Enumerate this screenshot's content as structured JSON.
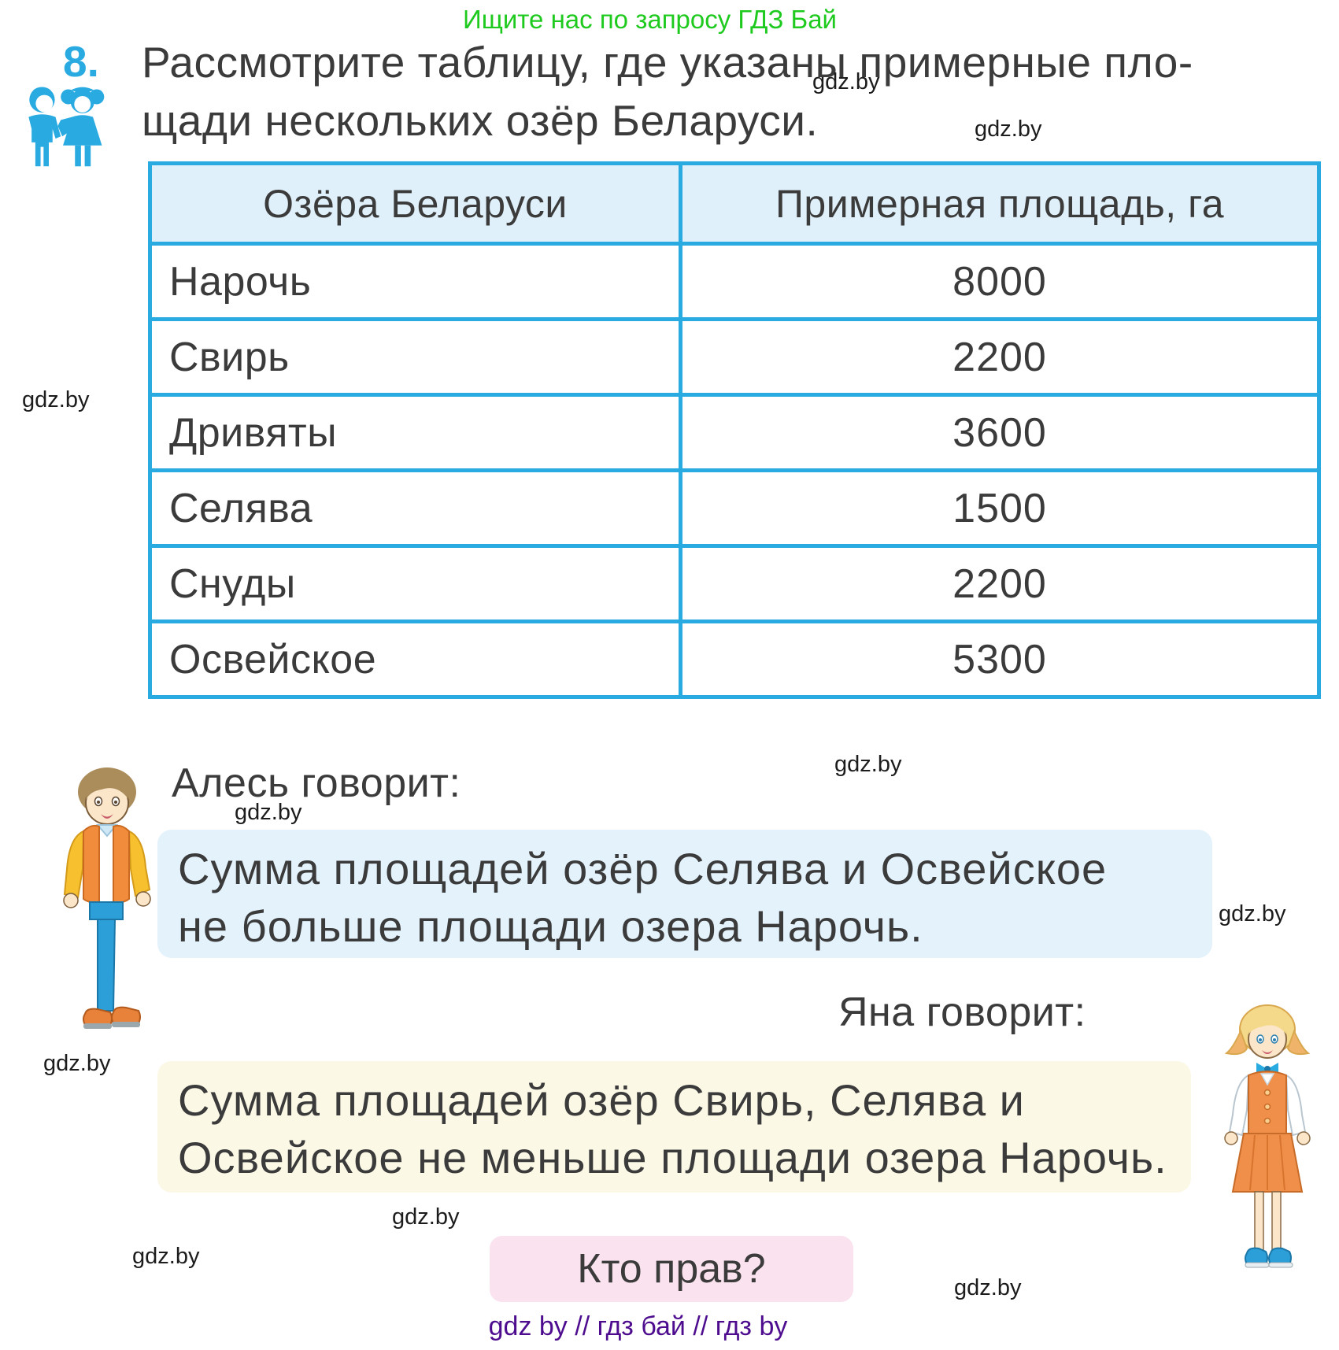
{
  "page": {
    "promo_banner": "Ищите нас по запросу ГДЗ Бай",
    "watermark": "gdz.by",
    "footer": "gdz by  //  гдз бай  //  гдз by"
  },
  "task": {
    "number": "8.",
    "text_line1": "Рассмотрите таблицу, где указаны примерные пло-",
    "text_line2": "щади нескольких озёр Беларуси."
  },
  "table": {
    "headers": [
      "Озёра Беларуси",
      "Примерная площадь, га"
    ],
    "rows": [
      [
        "Нарочь",
        "8000"
      ],
      [
        "Свирь",
        "2200"
      ],
      [
        "Дривяты",
        "3600"
      ],
      [
        "Селява",
        "1500"
      ],
      [
        "Снуды",
        "2200"
      ],
      [
        "Освейское",
        "5300"
      ]
    ]
  },
  "ales": {
    "label": "Алесь говорит:",
    "line1": "Сумма площадей озёр Селява и Освейское",
    "line2": "не больше площади озера Нарочь."
  },
  "yana": {
    "label": "Яна говорит:",
    "line1": "Сумма площадей озёр Свирь, Селява и",
    "line2": "Освейское не меньше площади озера Нарочь."
  },
  "question": "Кто прав?",
  "colors": {
    "accent_blue": "#29abe2",
    "green": "#1fca1f",
    "purple": "#4e0d8f",
    "text": "#3b3b3b",
    "header_bg": "#dff0fa",
    "ales_box_bg": "#e4f2fc",
    "yana_box_bg": "#fbf8e6",
    "question_box_bg": "#fae2ee"
  }
}
